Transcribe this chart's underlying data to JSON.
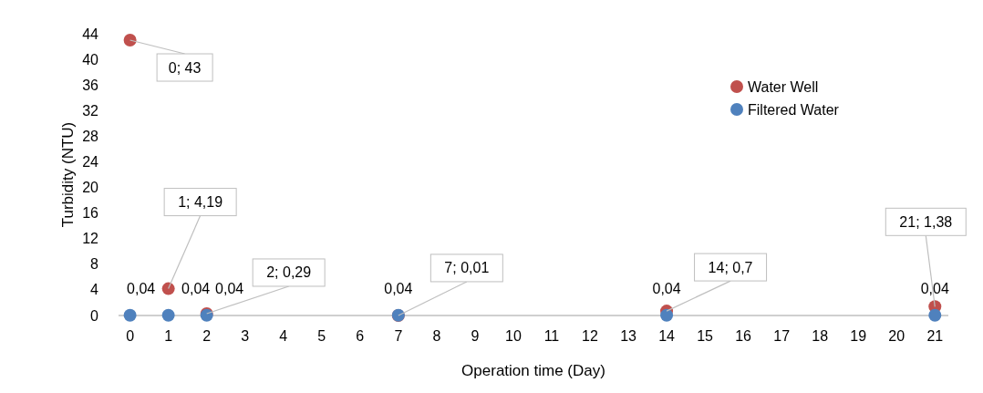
{
  "chart_data": {
    "type": "scatter",
    "xlabel": "Operation time (Day)",
    "ylabel": "Turbidity (NTU)",
    "xlim": [
      -0.3,
      21.35
    ],
    "xticks": [
      0,
      1,
      2,
      3,
      4,
      5,
      6,
      7,
      8,
      9,
      10,
      11,
      12,
      13,
      14,
      15,
      16,
      17,
      18,
      19,
      20,
      21
    ],
    "ylim": [
      0,
      44
    ],
    "yticks": [
      0,
      4,
      8,
      12,
      16,
      20,
      24,
      28,
      32,
      36,
      40,
      44
    ],
    "legend": "top right",
    "marker": "circle",
    "grid": false,
    "series": [
      {
        "name": "Water Well",
        "color": "#c0504d",
        "x": [
          0,
          1,
          2,
          7,
          14,
          21
        ],
        "values": [
          43,
          4.19,
          0.29,
          0.01,
          0.7,
          1.38
        ],
        "value_labels": [
          "0; 43",
          "1; 4,19",
          "2; 0,29",
          "7; 0,01",
          "14; 0,7",
          "21; 1,38"
        ]
      },
      {
        "name": "Filtered Water",
        "color": "#4f81bd",
        "x": [
          0,
          1,
          2,
          7,
          14,
          21
        ],
        "values": [
          0.04,
          0.04,
          0.04,
          0.04,
          0.04,
          0.04
        ],
        "value_labels": [
          "0,04",
          "0,04",
          "0,04",
          "0,04",
          "0,04",
          "0,04"
        ]
      }
    ]
  }
}
